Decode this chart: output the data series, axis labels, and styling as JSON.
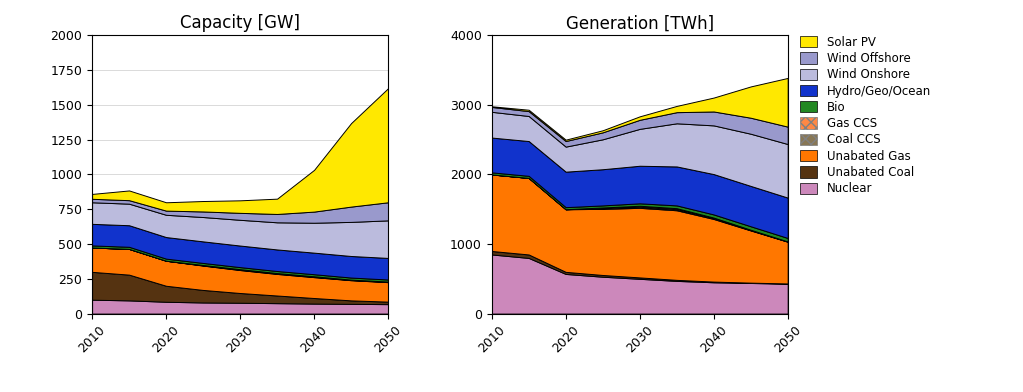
{
  "years": [
    2010,
    2015,
    2020,
    2025,
    2030,
    2035,
    2040,
    2045,
    2050
  ],
  "title_cap": "Capacity [GW]",
  "title_gen": "Generation [TWh]",
  "colors": {
    "Solar PV": "#FFE800",
    "Wind Offshore": "#9999CC",
    "Wind Onshore": "#BBBBDD",
    "Hydro/Geo/Ocean": "#1133CC",
    "Bio": "#228822",
    "Gas CCS": "#FF8844",
    "Coal CCS": "#887755",
    "Unabated Gas": "#FF7700",
    "Unabated Coal": "#553311",
    "Nuclear": "#CC88BB"
  },
  "legend_labels": [
    "Solar PV",
    "Wind Offshore",
    "Wind Onshore",
    "Hydro/Geo/Ocean",
    "Bio",
    "Gas CCS",
    "Coal CCS",
    "Unabated Gas",
    "Unabated Coal",
    "Nuclear"
  ],
  "stack_order": [
    "Nuclear",
    "Unabated Coal",
    "Unabated Gas",
    "Coal CCS",
    "Gas CCS",
    "Bio",
    "Hydro/Geo/Ocean",
    "Wind Onshore",
    "Wind Offshore",
    "Solar PV"
  ],
  "legend_order": [
    "Solar PV",
    "Wind Offshore",
    "Wind Onshore",
    "Hydro/Geo/Ocean",
    "Bio",
    "Gas CCS",
    "Coal CCS",
    "Unabated Gas",
    "Unabated Coal",
    "Nuclear"
  ],
  "cap": {
    "Nuclear": [
      100,
      95,
      85,
      80,
      78,
      75,
      72,
      70,
      68
    ],
    "Unabated Coal": [
      200,
      185,
      115,
      90,
      70,
      55,
      40,
      25,
      18
    ],
    "Unabated Gas": [
      175,
      185,
      180,
      175,
      165,
      155,
      150,
      145,
      140
    ],
    "Coal CCS": [
      0,
      0,
      0,
      2,
      3,
      3,
      3,
      2,
      2
    ],
    "Gas CCS": [
      0,
      0,
      0,
      2,
      3,
      3,
      3,
      2,
      2
    ],
    "Bio": [
      15,
      15,
      15,
      15,
      15,
      15,
      15,
      15,
      15
    ],
    "Hydro/Geo/Ocean": [
      155,
      155,
      155,
      155,
      155,
      155,
      155,
      155,
      155
    ],
    "Wind Onshore": [
      155,
      155,
      160,
      175,
      185,
      195,
      215,
      245,
      270
    ],
    "Wind Offshore": [
      25,
      25,
      30,
      40,
      50,
      60,
      80,
      110,
      130
    ],
    "Solar PV": [
      35,
      70,
      60,
      75,
      90,
      110,
      300,
      600,
      820
    ]
  },
  "gen": {
    "Nuclear": [
      850,
      800,
      570,
      530,
      500,
      470,
      450,
      440,
      430
    ],
    "Unabated Coal": [
      50,
      50,
      30,
      25,
      20,
      15,
      10,
      5,
      3
    ],
    "Unabated Gas": [
      1100,
      1100,
      900,
      950,
      1000,
      1000,
      900,
      750,
      600
    ],
    "Coal CCS": [
      0,
      0,
      0,
      10,
      15,
      15,
      10,
      5,
      2
    ],
    "Gas CCS": [
      0,
      0,
      0,
      10,
      15,
      15,
      10,
      5,
      2
    ],
    "Bio": [
      30,
      30,
      30,
      30,
      35,
      40,
      45,
      50,
      50
    ],
    "Hydro/Geo/Ocean": [
      500,
      500,
      510,
      520,
      540,
      560,
      580,
      580,
      580
    ],
    "Wind Onshore": [
      370,
      360,
      360,
      430,
      530,
      620,
      700,
      750,
      770
    ],
    "Wind Offshore": [
      70,
      70,
      80,
      100,
      130,
      160,
      200,
      230,
      250
    ],
    "Solar PV": [
      10,
      20,
      20,
      30,
      50,
      90,
      200,
      450,
      700
    ]
  },
  "cap_ylim": 2000,
  "gen_ylim": 4000,
  "gen_yticks": [
    0,
    1000,
    2000,
    3000,
    4000
  ]
}
